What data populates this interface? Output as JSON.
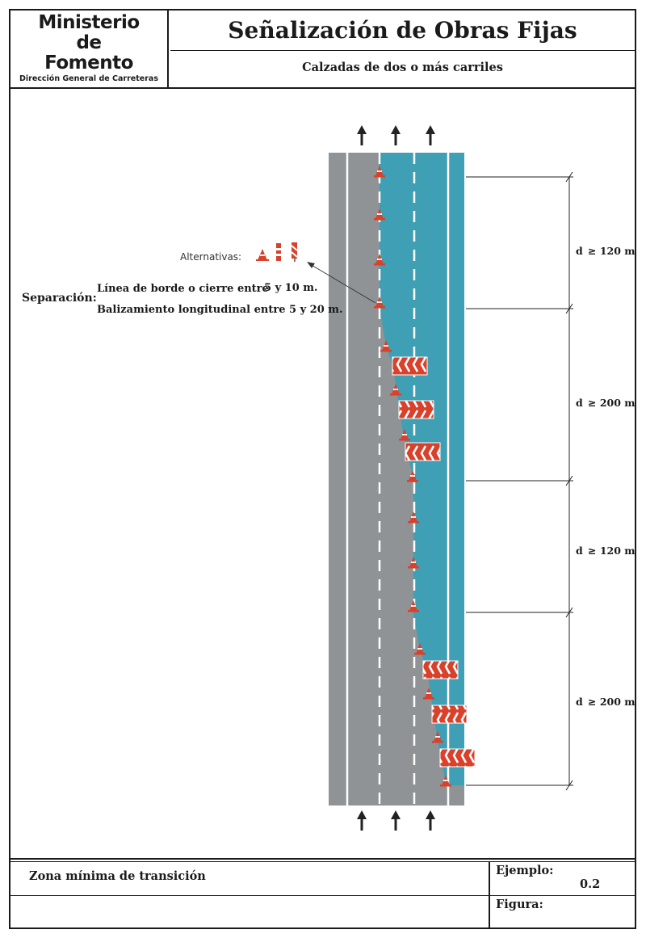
{
  "header": {
    "ministry_line1": "Ministerio",
    "ministry_line2": "de",
    "ministry_line3": "Fomento",
    "ministry_sub": "Dirección General de Carreteras",
    "title": "Señalización de Obras Fijas",
    "subtitle": "Calzadas de dos o más carriles"
  },
  "diagram": {
    "alternatives_label": "Alternativas:",
    "separation_label": "Separación:",
    "separation_lines": [
      {
        "text": "Línea de borde  o cierre entre",
        "range": "5 y 10 m."
      },
      {
        "text": "Balizamiento longitudinal  entre 5 y 20 m.",
        "range": ""
      }
    ],
    "distances": [
      {
        "op": "d",
        "value": "≥ 120 m"
      },
      {
        "op": "d",
        "value": "≥ 200 m"
      },
      {
        "op": "d",
        "value": "≥ 120 m"
      },
      {
        "op": "d",
        "value": "≥ 200 m"
      }
    ],
    "colors": {
      "road": "#8f9396",
      "closed_zone": "#3f9fb4",
      "marking": "#ffffff",
      "cone": "#d9412b",
      "panel": "#d9412b"
    }
  },
  "footer": {
    "zone_title": "Zona mínima de transición",
    "example_label": "Ejemplo:",
    "example_value": "0.2",
    "figure_label": "Figura:"
  }
}
